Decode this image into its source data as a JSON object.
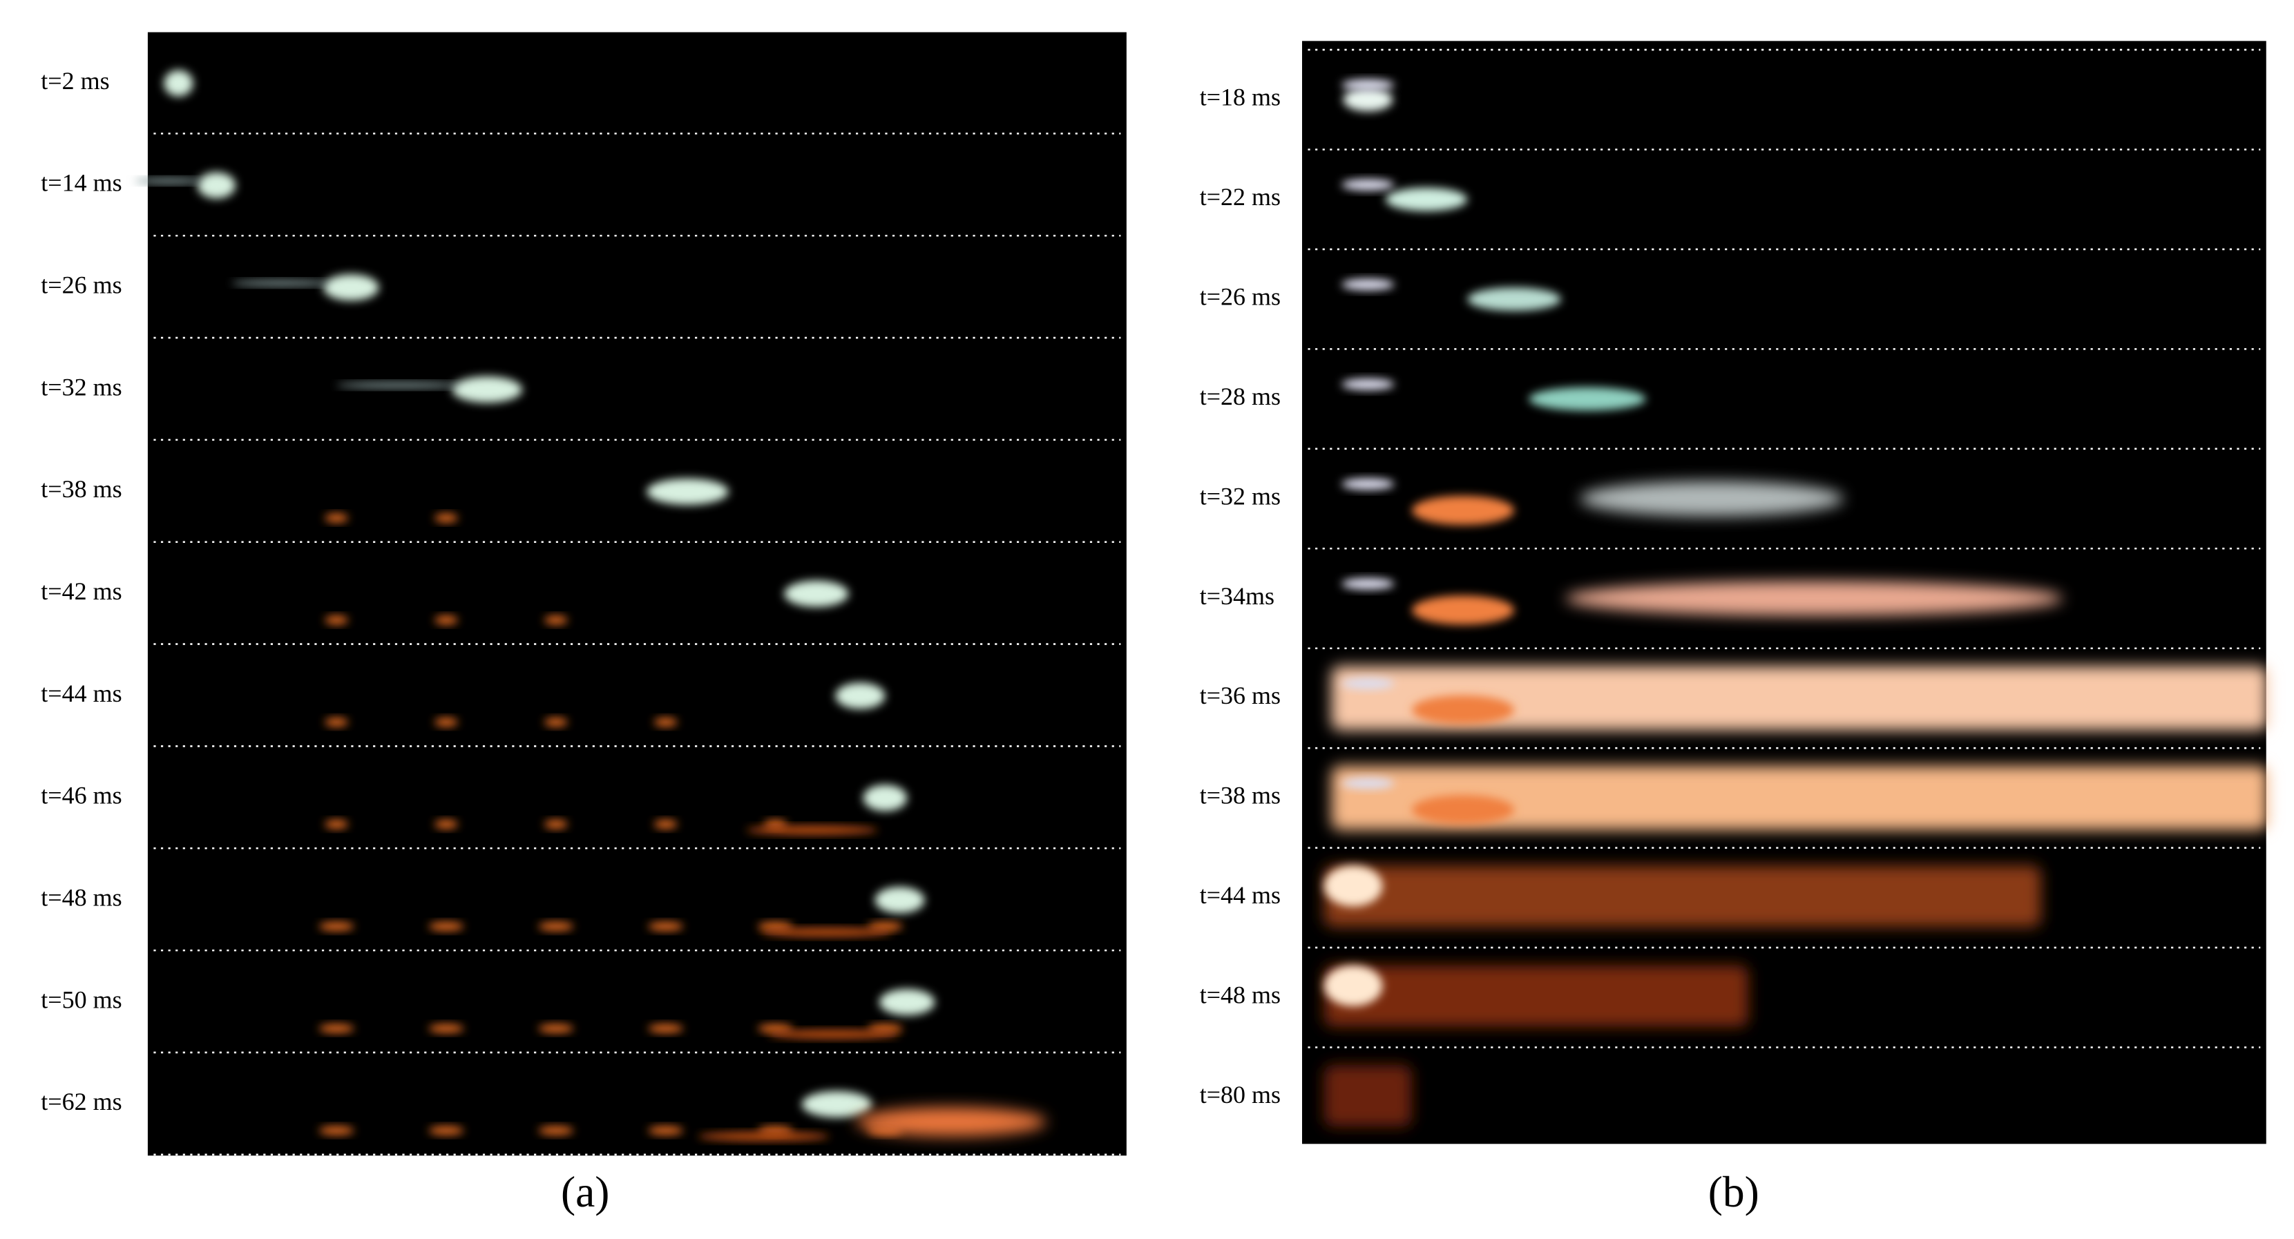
{
  "panels": [
    {
      "caption": "(a)",
      "frames": [
        "t=2 ms",
        "t=14 ms",
        "t=26 ms",
        "t=32 ms",
        "t=38 ms",
        "t=42 ms",
        "t=44 ms",
        "t=46 ms",
        "t=48 ms",
        "t=50 ms",
        "t=62 ms"
      ]
    },
    {
      "caption": "(b)",
      "frames": [
        "t=18 ms",
        "t=22 ms",
        "t=26 ms",
        "t=28 ms",
        "t=32 ms",
        "t=34ms",
        "t=36 ms",
        "t=38 ms",
        "t=44 ms",
        "t=48 ms",
        "t=80 ms"
      ]
    }
  ]
}
